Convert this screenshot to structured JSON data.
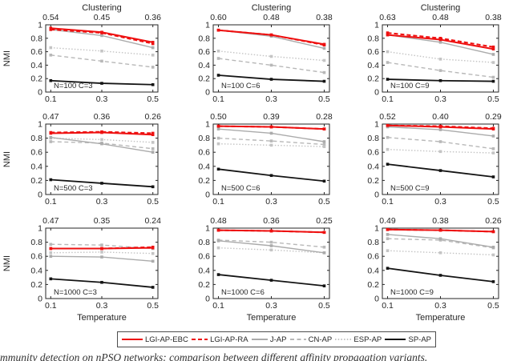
{
  "figure": {
    "top_axis_label": "Clustering",
    "xlabel": "Temperature",
    "ylabel": "NMI",
    "x_tick_labels": [
      "0.1",
      "0.3",
      "0.5"
    ],
    "y_tick_labels": [
      "0",
      "0.2",
      "0.4",
      "0.6",
      "0.8",
      "1"
    ],
    "caption_fragment": "mmunity detection on nPSO networks: comparison between different affinity propagation variants.",
    "colors": {
      "red": "#ee1010",
      "gray": "#ababab",
      "light_gray": "#c4c4c4",
      "black": "#141414",
      "axis": "#262626"
    },
    "series_styles": {
      "LGI-AP-EBC": {
        "color": "#ee1010",
        "dash": "",
        "width": 2,
        "marker": true
      },
      "LGI-AP-RA": {
        "color": "#ee1010",
        "dash": "5,3",
        "width": 2,
        "marker": true
      },
      "J-AP": {
        "color": "#ababab",
        "dash": "",
        "width": 1.4,
        "marker": true
      },
      "CN-AP": {
        "color": "#b8b8b8",
        "dash": "5,3.5",
        "width": 1.4,
        "marker": true
      },
      "ESP-AP": {
        "color": "#c4c4c4",
        "dash": "1.5,2.2",
        "width": 1.4,
        "marker": true
      },
      "SP-AP": {
        "color": "#141414",
        "dash": "",
        "width": 1.8,
        "marker": true
      }
    },
    "legend": [
      {
        "label": "LGI-AP-EBC"
      },
      {
        "label": "LGI-AP-RA"
      },
      {
        "label": "J-AP"
      },
      {
        "label": "CN-AP"
      },
      {
        "label": "ESP-AP"
      },
      {
        "label": "SP-AP"
      }
    ]
  },
  "chart_data": [
    {
      "type": "line",
      "row": 0,
      "col": 0,
      "annotation": "N=100 C=3",
      "x": [
        0.1,
        0.3,
        0.5
      ],
      "xlim": [
        0.08,
        0.52
      ],
      "ylim": [
        0,
        1
      ],
      "top_ticks": [
        "0.54",
        "0.45",
        "0.36"
      ],
      "series": [
        {
          "name": "LGI-AP-EBC",
          "values": [
            0.95,
            0.89,
            0.74
          ]
        },
        {
          "name": "LGI-AP-RA",
          "values": [
            0.93,
            0.88,
            0.72
          ]
        },
        {
          "name": "J-AP",
          "values": [
            0.93,
            0.84,
            0.66
          ]
        },
        {
          "name": "CN-AP",
          "values": [
            0.55,
            0.46,
            0.37
          ]
        },
        {
          "name": "ESP-AP",
          "values": [
            0.66,
            0.61,
            0.55
          ]
        },
        {
          "name": "SP-AP",
          "values": [
            0.17,
            0.13,
            0.11
          ]
        }
      ]
    },
    {
      "type": "line",
      "row": 0,
      "col": 1,
      "annotation": "N=100 C=6",
      "x": [
        0.1,
        0.3,
        0.5
      ],
      "xlim": [
        0.08,
        0.52
      ],
      "ylim": [
        0,
        1
      ],
      "top_ticks": [
        "0.60",
        "0.48",
        "0.38"
      ],
      "series": [
        {
          "name": "LGI-AP-EBC",
          "values": [
            0.92,
            0.85,
            0.71
          ]
        },
        {
          "name": "LGI-AP-RA",
          "values": [
            0.92,
            0.85,
            0.7
          ]
        },
        {
          "name": "J-AP",
          "values": [
            0.92,
            0.83,
            0.65
          ]
        },
        {
          "name": "CN-AP",
          "values": [
            0.5,
            0.4,
            0.29
          ]
        },
        {
          "name": "ESP-AP",
          "values": [
            0.61,
            0.53,
            0.47
          ]
        },
        {
          "name": "SP-AP",
          "values": [
            0.25,
            0.19,
            0.16
          ]
        }
      ]
    },
    {
      "type": "line",
      "row": 0,
      "col": 2,
      "annotation": "N=100 C=9",
      "x": [
        0.1,
        0.3,
        0.5
      ],
      "xlim": [
        0.08,
        0.52
      ],
      "ylim": [
        0,
        1
      ],
      "top_ticks": [
        "0.63",
        "0.48",
        "0.38"
      ],
      "series": [
        {
          "name": "LGI-AP-EBC",
          "values": [
            0.85,
            0.78,
            0.64
          ]
        },
        {
          "name": "LGI-AP-RA",
          "values": [
            0.88,
            0.8,
            0.67
          ]
        },
        {
          "name": "J-AP",
          "values": [
            0.85,
            0.74,
            0.56
          ]
        },
        {
          "name": "CN-AP",
          "values": [
            0.44,
            0.32,
            0.22
          ]
        },
        {
          "name": "ESP-AP",
          "values": [
            0.6,
            0.49,
            0.44
          ]
        },
        {
          "name": "SP-AP",
          "values": [
            0.19,
            0.17,
            0.16
          ]
        }
      ]
    },
    {
      "type": "line",
      "row": 1,
      "col": 0,
      "annotation": "N=500 C=3",
      "x": [
        0.1,
        0.3,
        0.5
      ],
      "xlim": [
        0.08,
        0.52
      ],
      "ylim": [
        0,
        1
      ],
      "top_ticks": [
        "0.47",
        "0.36",
        "0.26"
      ],
      "series": [
        {
          "name": "LGI-AP-EBC",
          "values": [
            0.87,
            0.88,
            0.85
          ]
        },
        {
          "name": "LGI-AP-RA",
          "values": [
            0.88,
            0.89,
            0.87
          ]
        },
        {
          "name": "J-AP",
          "values": [
            0.81,
            0.72,
            0.6
          ]
        },
        {
          "name": "CN-AP",
          "values": [
            0.75,
            0.73,
            0.65
          ]
        },
        {
          "name": "ESP-AP",
          "values": [
            0.8,
            0.78,
            0.74
          ]
        },
        {
          "name": "SP-AP",
          "values": [
            0.21,
            0.16,
            0.11
          ]
        }
      ]
    },
    {
      "type": "line",
      "row": 1,
      "col": 1,
      "annotation": "N=500 C=6",
      "x": [
        0.1,
        0.3,
        0.5
      ],
      "xlim": [
        0.08,
        0.52
      ],
      "ylim": [
        0,
        1
      ],
      "top_ticks": [
        "0.50",
        "0.39",
        "0.28"
      ],
      "series": [
        {
          "name": "LGI-AP-EBC",
          "values": [
            0.97,
            0.96,
            0.93
          ]
        },
        {
          "name": "LGI-AP-RA",
          "values": [
            0.97,
            0.96,
            0.93
          ]
        },
        {
          "name": "J-AP",
          "values": [
            0.93,
            0.87,
            0.75
          ]
        },
        {
          "name": "CN-AP",
          "values": [
            0.8,
            0.76,
            0.71
          ]
        },
        {
          "name": "ESP-AP",
          "values": [
            0.72,
            0.7,
            0.68
          ]
        },
        {
          "name": "SP-AP",
          "values": [
            0.36,
            0.27,
            0.19
          ]
        }
      ]
    },
    {
      "type": "line",
      "row": 1,
      "col": 2,
      "annotation": "N=500 C=9",
      "x": [
        0.1,
        0.3,
        0.5
      ],
      "xlim": [
        0.08,
        0.52
      ],
      "ylim": [
        0,
        1
      ],
      "top_ticks": [
        "0.52",
        "0.40",
        "0.29"
      ],
      "series": [
        {
          "name": "LGI-AP-EBC",
          "values": [
            0.98,
            0.96,
            0.93
          ]
        },
        {
          "name": "LGI-AP-RA",
          "values": [
            0.98,
            0.97,
            0.94
          ]
        },
        {
          "name": "J-AP",
          "values": [
            0.96,
            0.92,
            0.83
          ]
        },
        {
          "name": "CN-AP",
          "values": [
            0.81,
            0.75,
            0.65
          ]
        },
        {
          "name": "ESP-AP",
          "values": [
            0.64,
            0.61,
            0.59
          ]
        },
        {
          "name": "SP-AP",
          "values": [
            0.43,
            0.34,
            0.25
          ]
        }
      ]
    },
    {
      "type": "line",
      "row": 2,
      "col": 0,
      "annotation": "N=1000 C=3",
      "x": [
        0.1,
        0.3,
        0.5
      ],
      "xlim": [
        0.08,
        0.52
      ],
      "ylim": [
        0,
        1
      ],
      "top_ticks": [
        "0.47",
        "0.35",
        "0.24"
      ],
      "series": [
        {
          "name": "LGI-AP-EBC",
          "values": [
            0.71,
            0.71,
            0.72
          ]
        },
        {
          "name": "LGI-AP-RA",
          "values": [
            0.71,
            0.71,
            0.73
          ]
        },
        {
          "name": "J-AP",
          "values": [
            0.6,
            0.59,
            0.53
          ]
        },
        {
          "name": "CN-AP",
          "values": [
            0.77,
            0.76,
            0.71
          ]
        },
        {
          "name": "ESP-AP",
          "values": [
            0.65,
            0.66,
            0.64
          ]
        },
        {
          "name": "SP-AP",
          "values": [
            0.28,
            0.23,
            0.16
          ]
        }
      ]
    },
    {
      "type": "line",
      "row": 2,
      "col": 1,
      "annotation": "N=1000 C=6",
      "x": [
        0.1,
        0.3,
        0.5
      ],
      "xlim": [
        0.08,
        0.52
      ],
      "ylim": [
        0,
        1
      ],
      "top_ticks": [
        "0.48",
        "0.36",
        "0.25"
      ],
      "series": [
        {
          "name": "LGI-AP-EBC",
          "values": [
            0.97,
            0.96,
            0.94
          ]
        },
        {
          "name": "LGI-AP-RA",
          "values": [
            0.97,
            0.96,
            0.94
          ]
        },
        {
          "name": "J-AP",
          "values": [
            0.82,
            0.75,
            0.65
          ]
        },
        {
          "name": "CN-AP",
          "values": [
            0.83,
            0.8,
            0.73
          ]
        },
        {
          "name": "ESP-AP",
          "values": [
            0.72,
            0.69,
            0.65
          ]
        },
        {
          "name": "SP-AP",
          "values": [
            0.34,
            0.26,
            0.18
          ]
        }
      ]
    },
    {
      "type": "line",
      "row": 2,
      "col": 2,
      "annotation": "N=1000 C=9",
      "x": [
        0.1,
        0.3,
        0.5
      ],
      "xlim": [
        0.08,
        0.52
      ],
      "ylim": [
        0,
        1
      ],
      "top_ticks": [
        "0.49",
        "0.38",
        "0.26"
      ],
      "series": [
        {
          "name": "LGI-AP-EBC",
          "values": [
            0.98,
            0.97,
            0.95
          ]
        },
        {
          "name": "LGI-AP-RA",
          "values": [
            0.98,
            0.97,
            0.95
          ]
        },
        {
          "name": "J-AP",
          "values": [
            0.91,
            0.85,
            0.73
          ]
        },
        {
          "name": "CN-AP",
          "values": [
            0.85,
            0.83,
            0.72
          ]
        },
        {
          "name": "ESP-AP",
          "values": [
            0.68,
            0.65,
            0.62
          ]
        },
        {
          "name": "SP-AP",
          "values": [
            0.43,
            0.33,
            0.24
          ]
        }
      ]
    }
  ]
}
